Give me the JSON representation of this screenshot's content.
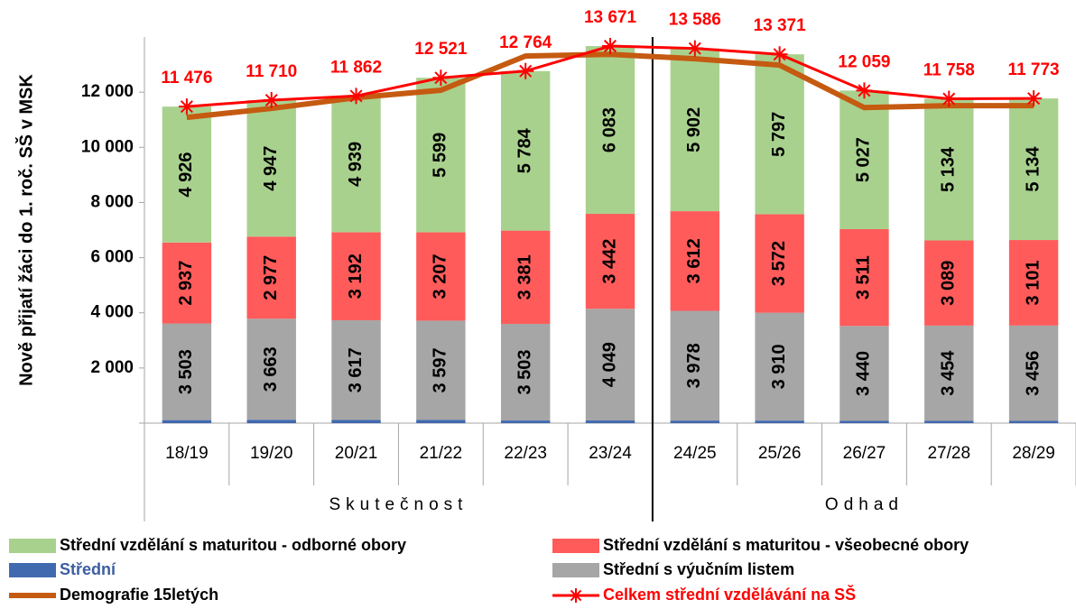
{
  "chart_data": {
    "type": "stacked_bar_line",
    "y_label": "Nově přijatí žáci do 1. roč. SŠ v MSK",
    "categories": [
      "18/19",
      "19/20",
      "20/21",
      "21/22",
      "22/23",
      "23/24",
      "24/25",
      "25/26",
      "26/27",
      "27/28",
      "28/29"
    ],
    "groups": [
      {
        "label": "Skutečnost",
        "count": 6
      },
      {
        "label": "Odhad",
        "count": 5
      }
    ],
    "ylim": [
      0,
      14000
    ],
    "yticks": [
      {
        "value": 2000,
        "label": "2 000"
      },
      {
        "value": 4000,
        "label": "4 000"
      },
      {
        "value": 6000,
        "label": "6 000"
      },
      {
        "value": 8000,
        "label": "8 000"
      },
      {
        "value": 10000,
        "label": "10 000"
      },
      {
        "value": 12000,
        "label": "12 000"
      }
    ],
    "series": [
      {
        "name": "Střední",
        "color": "#4169b0",
        "label_color": "#3c5ea0",
        "values": [
          110,
          123,
          114,
          118,
          96,
          97,
          94,
          93,
          82,
          82,
          82
        ]
      },
      {
        "name": "Střední s výučním listem",
        "color": "#a6a6a6",
        "values": [
          3503,
          3663,
          3617,
          3597,
          3503,
          4049,
          3978,
          3910,
          3440,
          3454,
          3456
        ],
        "value_labels": [
          "3 503",
          "3 663",
          "3 617",
          "3 597",
          "3 503",
          "4 049",
          "3 978",
          "3 910",
          "3 440",
          "3 454",
          "3 456"
        ]
      },
      {
        "name": "Střední vzdělání s maturitou - všeobecné obory",
        "color": "#ff5b5b",
        "values": [
          2937,
          2977,
          3192,
          3207,
          3381,
          3442,
          3612,
          3572,
          3511,
          3089,
          3101
        ],
        "value_labels": [
          "2 937",
          "2 977",
          "3 192",
          "3 207",
          "3 381",
          "3 442",
          "3 612",
          "3 572",
          "3 511",
          "3 089",
          "3 101"
        ]
      },
      {
        "name": "Střední vzdělání s maturitou - odborné obory",
        "color": "#a9d18e",
        "values": [
          4926,
          4947,
          4939,
          5599,
          5784,
          6083,
          5902,
          5797,
          5027,
          5134,
          5134
        ],
        "value_labels": [
          "4 926",
          "4 947",
          "4 939",
          "5 599",
          "5 784",
          "6 083",
          "5 902",
          "5 797",
          "5 027",
          "5 134",
          "5 134"
        ]
      }
    ],
    "lines": [
      {
        "name": "Demografie 15letých",
        "color": "#c55a11",
        "values": [
          11085,
          11410,
          11800,
          12070,
          13310,
          13370,
          13210,
          12980,
          11440,
          11510,
          11510
        ]
      },
      {
        "name": "Celkem střední vzdělávání na SŠ",
        "color": "#ff0000",
        "marker": "star",
        "values": [
          11476,
          11710,
          11862,
          12521,
          12764,
          13671,
          13586,
          13371,
          12059,
          11758,
          11773
        ],
        "value_labels": [
          "11 476",
          "11 710",
          "11 862",
          "12 521",
          "12 764",
          "13 671",
          "13 586",
          "13 371",
          "12 059",
          "11 758",
          "11 773"
        ]
      }
    ]
  }
}
